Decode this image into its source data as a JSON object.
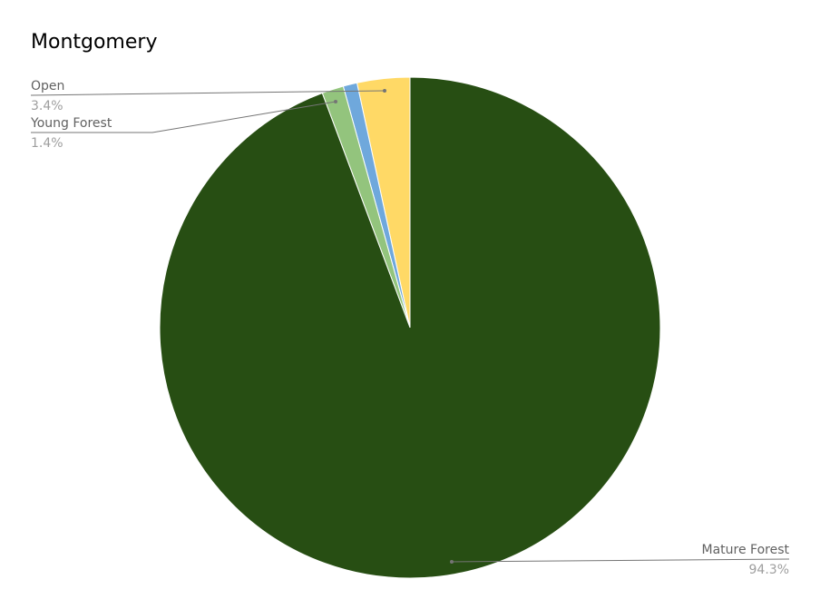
{
  "chart_data": {
    "type": "pie",
    "title": "Montgomery",
    "slices": [
      {
        "name": "Open",
        "value": 3.4,
        "label_value": "3.4%",
        "color": "#ffd966"
      },
      {
        "name": "",
        "value": 0.9,
        "label_value": "",
        "color": "#6fa8dc"
      },
      {
        "name": "Young Forest",
        "value": 1.4,
        "label_value": "1.4%",
        "color": "#93c47d"
      },
      {
        "name": "Mature Forest",
        "value": 94.3,
        "label_value": "94.3%",
        "color": "#274e13"
      }
    ],
    "start_angle": "12 o'clock",
    "direction": "counter-clockwise",
    "legend": "none"
  }
}
